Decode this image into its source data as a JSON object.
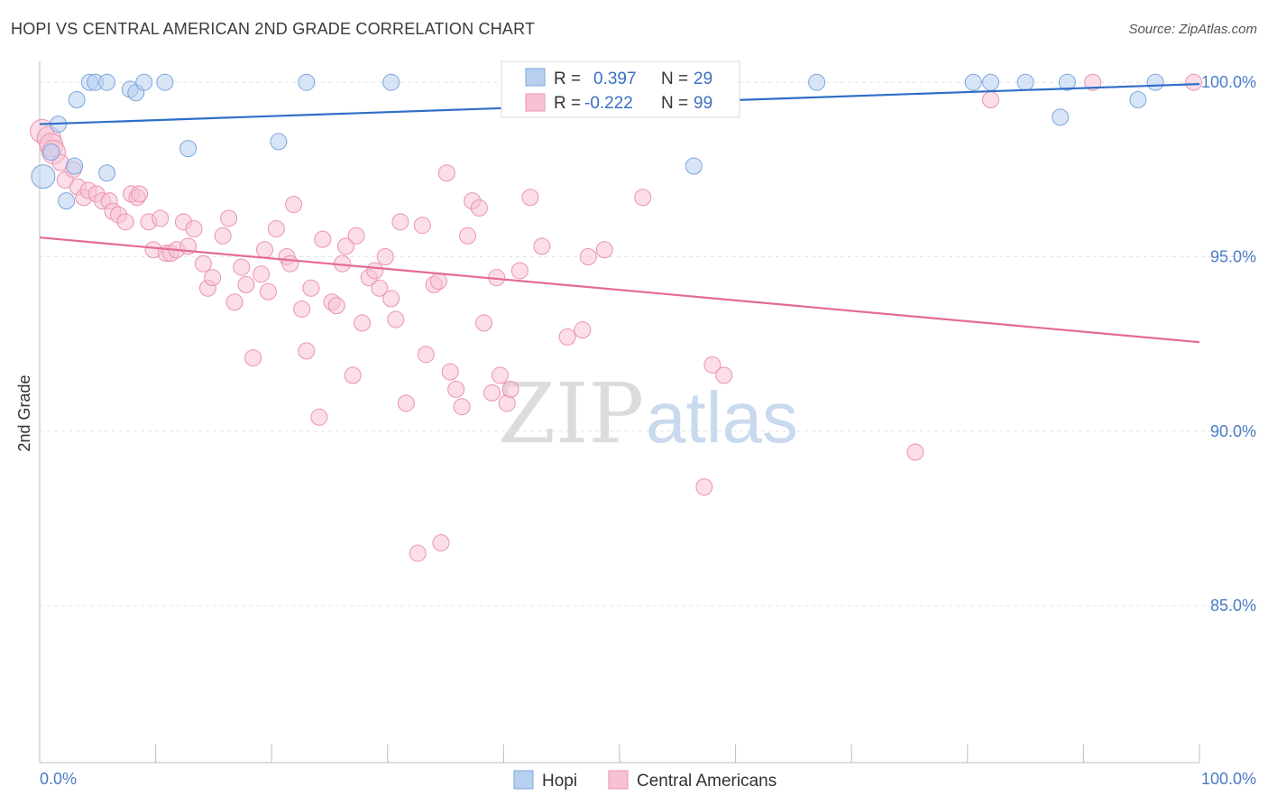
{
  "title": "HOPI VS CENTRAL AMERICAN 2ND GRADE CORRELATION CHART",
  "source": "Source: ZipAtlas.com",
  "watermark": {
    "zip": "ZIP",
    "atlas": "atlas"
  },
  "colors": {
    "hopi_fill": "#b8d0f0",
    "hopi_stroke": "#7aa6dc",
    "hopi_line": "#2f6fc7",
    "central_fill": "#f7c2d3",
    "central_stroke": "#ea93b0",
    "central_line": "#e46a96",
    "grid": "#e3e3e3",
    "tick_text": "#4a7cc7"
  },
  "legend_stats": [
    {
      "r_label": "R =",
      "r_value": "0.397",
      "n_label": "N =",
      "n_value": "29"
    },
    {
      "r_label": "R =",
      "r_value": "-0.222",
      "n_label": "N =",
      "n_value": "99"
    }
  ],
  "chart_data": {
    "type": "scatter",
    "title": "HOPI VS CENTRAL AMERICAN 2ND GRADE CORRELATION CHART",
    "ylabel": "2nd Grade",
    "xlabel": "",
    "xlim": [
      0,
      100
    ],
    "ylim": [
      80.5,
      100.6
    ],
    "x_tick_labels": [
      "0.0%",
      "100.0%"
    ],
    "y_ticks": [
      85,
      90,
      95,
      100
    ],
    "y_tick_labels": [
      "85.0%",
      "90.0%",
      "95.0%",
      "100.0%"
    ],
    "grid": true,
    "legend_position": "bottom-center",
    "series": [
      {
        "name": "Hopi",
        "trend": {
          "x": [
            0,
            100
          ],
          "y": [
            98.8,
            99.95
          ]
        },
        "points": [
          [
            0.3,
            97.3
          ],
          [
            1.0,
            98.0
          ],
          [
            1.6,
            98.8
          ],
          [
            2.3,
            96.6
          ],
          [
            3.0,
            97.6
          ],
          [
            3.2,
            99.5
          ],
          [
            4.3,
            100.0
          ],
          [
            4.8,
            100.0
          ],
          [
            5.8,
            100.0
          ],
          [
            5.8,
            97.4
          ],
          [
            7.8,
            99.8
          ],
          [
            8.3,
            99.7
          ],
          [
            9.0,
            100.0
          ],
          [
            10.8,
            100.0
          ],
          [
            12.8,
            98.1
          ],
          [
            20.6,
            98.3
          ],
          [
            23.0,
            100.0
          ],
          [
            30.3,
            100.0
          ],
          [
            44.0,
            99.3
          ],
          [
            56.3,
            99.3
          ],
          [
            56.4,
            97.6
          ],
          [
            67.0,
            100.0
          ],
          [
            80.5,
            100.0
          ],
          [
            82.0,
            100.0
          ],
          [
            85.0,
            100.0
          ],
          [
            88.0,
            99.0
          ],
          [
            88.6,
            100.0
          ],
          [
            94.7,
            99.5
          ],
          [
            96.2,
            100.0
          ]
        ]
      },
      {
        "name": "Central Americans",
        "trend": {
          "x": [
            0,
            100
          ],
          "y": [
            95.55,
            92.55
          ]
        },
        "points": [
          [
            0.2,
            98.6
          ],
          [
            0.8,
            98.4
          ],
          [
            1.0,
            98.2
          ],
          [
            1.2,
            98.0
          ],
          [
            1.8,
            97.7
          ],
          [
            2.2,
            97.2
          ],
          [
            2.9,
            97.5
          ],
          [
            3.3,
            97.0
          ],
          [
            3.8,
            96.7
          ],
          [
            4.2,
            96.9
          ],
          [
            4.9,
            96.8
          ],
          [
            5.4,
            96.6
          ],
          [
            6.0,
            96.6
          ],
          [
            6.3,
            96.3
          ],
          [
            6.8,
            96.2
          ],
          [
            7.4,
            96.0
          ],
          [
            7.9,
            96.8
          ],
          [
            8.4,
            96.7
          ],
          [
            8.6,
            96.8
          ],
          [
            9.4,
            96.0
          ],
          [
            9.8,
            95.2
          ],
          [
            10.4,
            96.1
          ],
          [
            10.9,
            95.1
          ],
          [
            11.3,
            95.1
          ],
          [
            11.8,
            95.2
          ],
          [
            12.4,
            96.0
          ],
          [
            12.8,
            95.3
          ],
          [
            13.3,
            95.8
          ],
          [
            14.1,
            94.8
          ],
          [
            14.5,
            94.1
          ],
          [
            14.9,
            94.4
          ],
          [
            15.8,
            95.6
          ],
          [
            16.3,
            96.1
          ],
          [
            16.8,
            93.7
          ],
          [
            17.4,
            94.7
          ],
          [
            17.8,
            94.2
          ],
          [
            18.4,
            92.1
          ],
          [
            19.1,
            94.5
          ],
          [
            19.4,
            95.2
          ],
          [
            19.7,
            94.0
          ],
          [
            20.4,
            95.8
          ],
          [
            21.3,
            95.0
          ],
          [
            21.6,
            94.8
          ],
          [
            21.9,
            96.5
          ],
          [
            22.6,
            93.5
          ],
          [
            23.0,
            92.3
          ],
          [
            23.4,
            94.1
          ],
          [
            24.1,
            90.4
          ],
          [
            24.4,
            95.5
          ],
          [
            25.2,
            93.7
          ],
          [
            25.6,
            93.6
          ],
          [
            26.1,
            94.8
          ],
          [
            26.4,
            95.3
          ],
          [
            27.0,
            91.6
          ],
          [
            27.3,
            95.6
          ],
          [
            27.8,
            93.1
          ],
          [
            28.4,
            94.4
          ],
          [
            28.9,
            94.6
          ],
          [
            29.3,
            94.1
          ],
          [
            29.8,
            95.0
          ],
          [
            30.3,
            93.8
          ],
          [
            30.7,
            93.2
          ],
          [
            31.1,
            96.0
          ],
          [
            31.6,
            90.8
          ],
          [
            32.6,
            86.5
          ],
          [
            33.0,
            95.9
          ],
          [
            33.3,
            92.2
          ],
          [
            34.0,
            94.2
          ],
          [
            34.4,
            94.3
          ],
          [
            34.6,
            86.8
          ],
          [
            35.1,
            97.4
          ],
          [
            35.4,
            91.7
          ],
          [
            35.9,
            91.2
          ],
          [
            36.4,
            90.7
          ],
          [
            36.9,
            95.6
          ],
          [
            37.3,
            96.6
          ],
          [
            37.9,
            96.4
          ],
          [
            38.3,
            93.1
          ],
          [
            39.0,
            91.1
          ],
          [
            39.4,
            94.4
          ],
          [
            39.7,
            91.6
          ],
          [
            40.3,
            90.8
          ],
          [
            40.6,
            91.2
          ],
          [
            41.4,
            94.6
          ],
          [
            42.3,
            96.7
          ],
          [
            43.3,
            95.3
          ],
          [
            45.5,
            92.7
          ],
          [
            46.8,
            92.9
          ],
          [
            47.3,
            95.0
          ],
          [
            48.7,
            95.2
          ],
          [
            52.0,
            96.7
          ],
          [
            57.3,
            88.4
          ],
          [
            58.0,
            91.9
          ],
          [
            59.0,
            91.6
          ],
          [
            59.5,
            100.0
          ],
          [
            75.5,
            89.4
          ],
          [
            82.0,
            99.5
          ],
          [
            90.8,
            100.0
          ],
          [
            99.5,
            100.0
          ]
        ]
      }
    ]
  },
  "legend": [
    {
      "label": "Hopi"
    },
    {
      "label": "Central Americans"
    }
  ]
}
